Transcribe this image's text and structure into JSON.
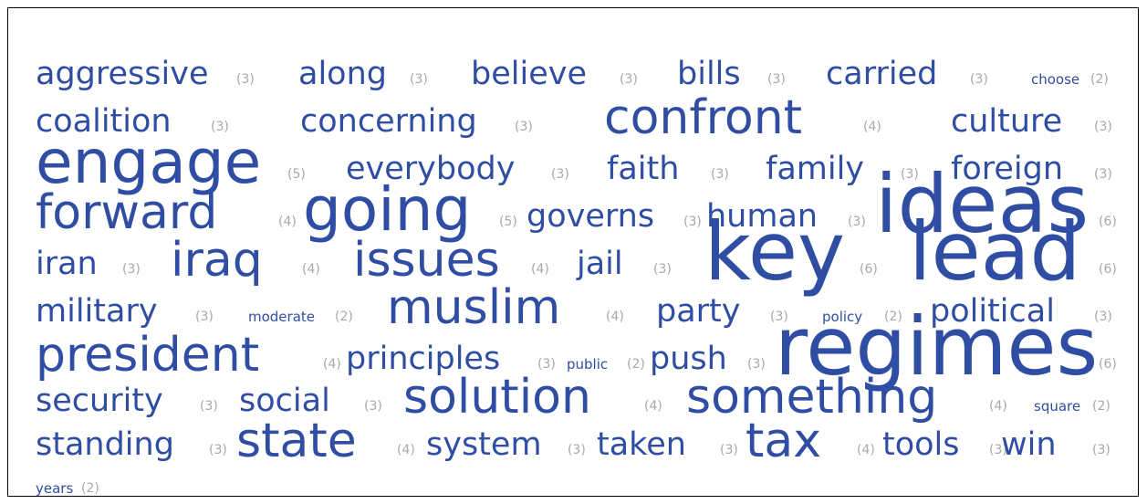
{
  "tag_cloud": {
    "terms": [
      {
        "word": "aggressive",
        "count": "(3)",
        "size": 3
      },
      {
        "word": "along",
        "count": "(3)",
        "size": 3
      },
      {
        "word": "believe",
        "count": "(3)",
        "size": 3
      },
      {
        "word": "bills",
        "count": "(3)",
        "size": 3
      },
      {
        "word": "carried",
        "count": "(3)",
        "size": 3
      },
      {
        "word": "choose",
        "count": "(2)",
        "size": 2
      },
      {
        "word": "coalition",
        "count": "(3)",
        "size": 3
      },
      {
        "word": "concerning",
        "count": "(3)",
        "size": 3
      },
      {
        "word": "confront",
        "count": "(4)",
        "size": 4
      },
      {
        "word": "culture",
        "count": "(3)",
        "size": 3
      },
      {
        "word": "engage",
        "count": "(5)",
        "size": 5
      },
      {
        "word": "everybody",
        "count": "(3)",
        "size": 3
      },
      {
        "word": "faith",
        "count": "(3)",
        "size": 3
      },
      {
        "word": "family",
        "count": "(3)",
        "size": 3
      },
      {
        "word": "foreign",
        "count": "(3)",
        "size": 3
      },
      {
        "word": "forward",
        "count": "(4)",
        "size": 4
      },
      {
        "word": "going",
        "count": "(5)",
        "size": 5
      },
      {
        "word": "governs",
        "count": "(3)",
        "size": 3
      },
      {
        "word": "human",
        "count": "(3)",
        "size": 3
      },
      {
        "word": "ideas",
        "count": "(6)",
        "size": 6
      },
      {
        "word": "iran",
        "count": "(3)",
        "size": 3
      },
      {
        "word": "iraq",
        "count": "(4)",
        "size": 4
      },
      {
        "word": "issues",
        "count": "(4)",
        "size": 4
      },
      {
        "word": "jail",
        "count": "(3)",
        "size": 3
      },
      {
        "word": "key",
        "count": "(6)",
        "size": 6
      },
      {
        "word": "lead",
        "count": "(6)",
        "size": 6
      },
      {
        "word": "military",
        "count": "(3)",
        "size": 3
      },
      {
        "word": "moderate",
        "count": "(2)",
        "size": 2
      },
      {
        "word": "muslim",
        "count": "(4)",
        "size": 4
      },
      {
        "word": "party",
        "count": "(3)",
        "size": 3
      },
      {
        "word": "policy",
        "count": "(2)",
        "size": 2
      },
      {
        "word": "political",
        "count": "(3)",
        "size": 3
      },
      {
        "word": "president",
        "count": "(4)",
        "size": 4
      },
      {
        "word": "principles",
        "count": "(3)",
        "size": 3
      },
      {
        "word": "public",
        "count": "(2)",
        "size": 2
      },
      {
        "word": "push",
        "count": "(3)",
        "size": 3
      },
      {
        "word": "regimes",
        "count": "(6)",
        "size": 6
      },
      {
        "word": "security",
        "count": "(3)",
        "size": 3
      },
      {
        "word": "social",
        "count": "(3)",
        "size": 3
      },
      {
        "word": "solution",
        "count": "(4)",
        "size": 4
      },
      {
        "word": "something",
        "count": "(4)",
        "size": 4
      },
      {
        "word": "square",
        "count": "(2)",
        "size": 2
      },
      {
        "word": "standing",
        "count": "(3)",
        "size": 3
      },
      {
        "word": "state",
        "count": "(4)",
        "size": 4
      },
      {
        "word": "system",
        "count": "(3)",
        "size": 3
      },
      {
        "word": "taken",
        "count": "(3)",
        "size": 3
      },
      {
        "word": "tax",
        "count": "(4)",
        "size": 4
      },
      {
        "word": "tools",
        "count": "(3)",
        "size": 3
      },
      {
        "word": "win",
        "count": "(3)",
        "size": 3
      },
      {
        "word": "years",
        "count": "(2)",
        "size": 2
      }
    ]
  }
}
